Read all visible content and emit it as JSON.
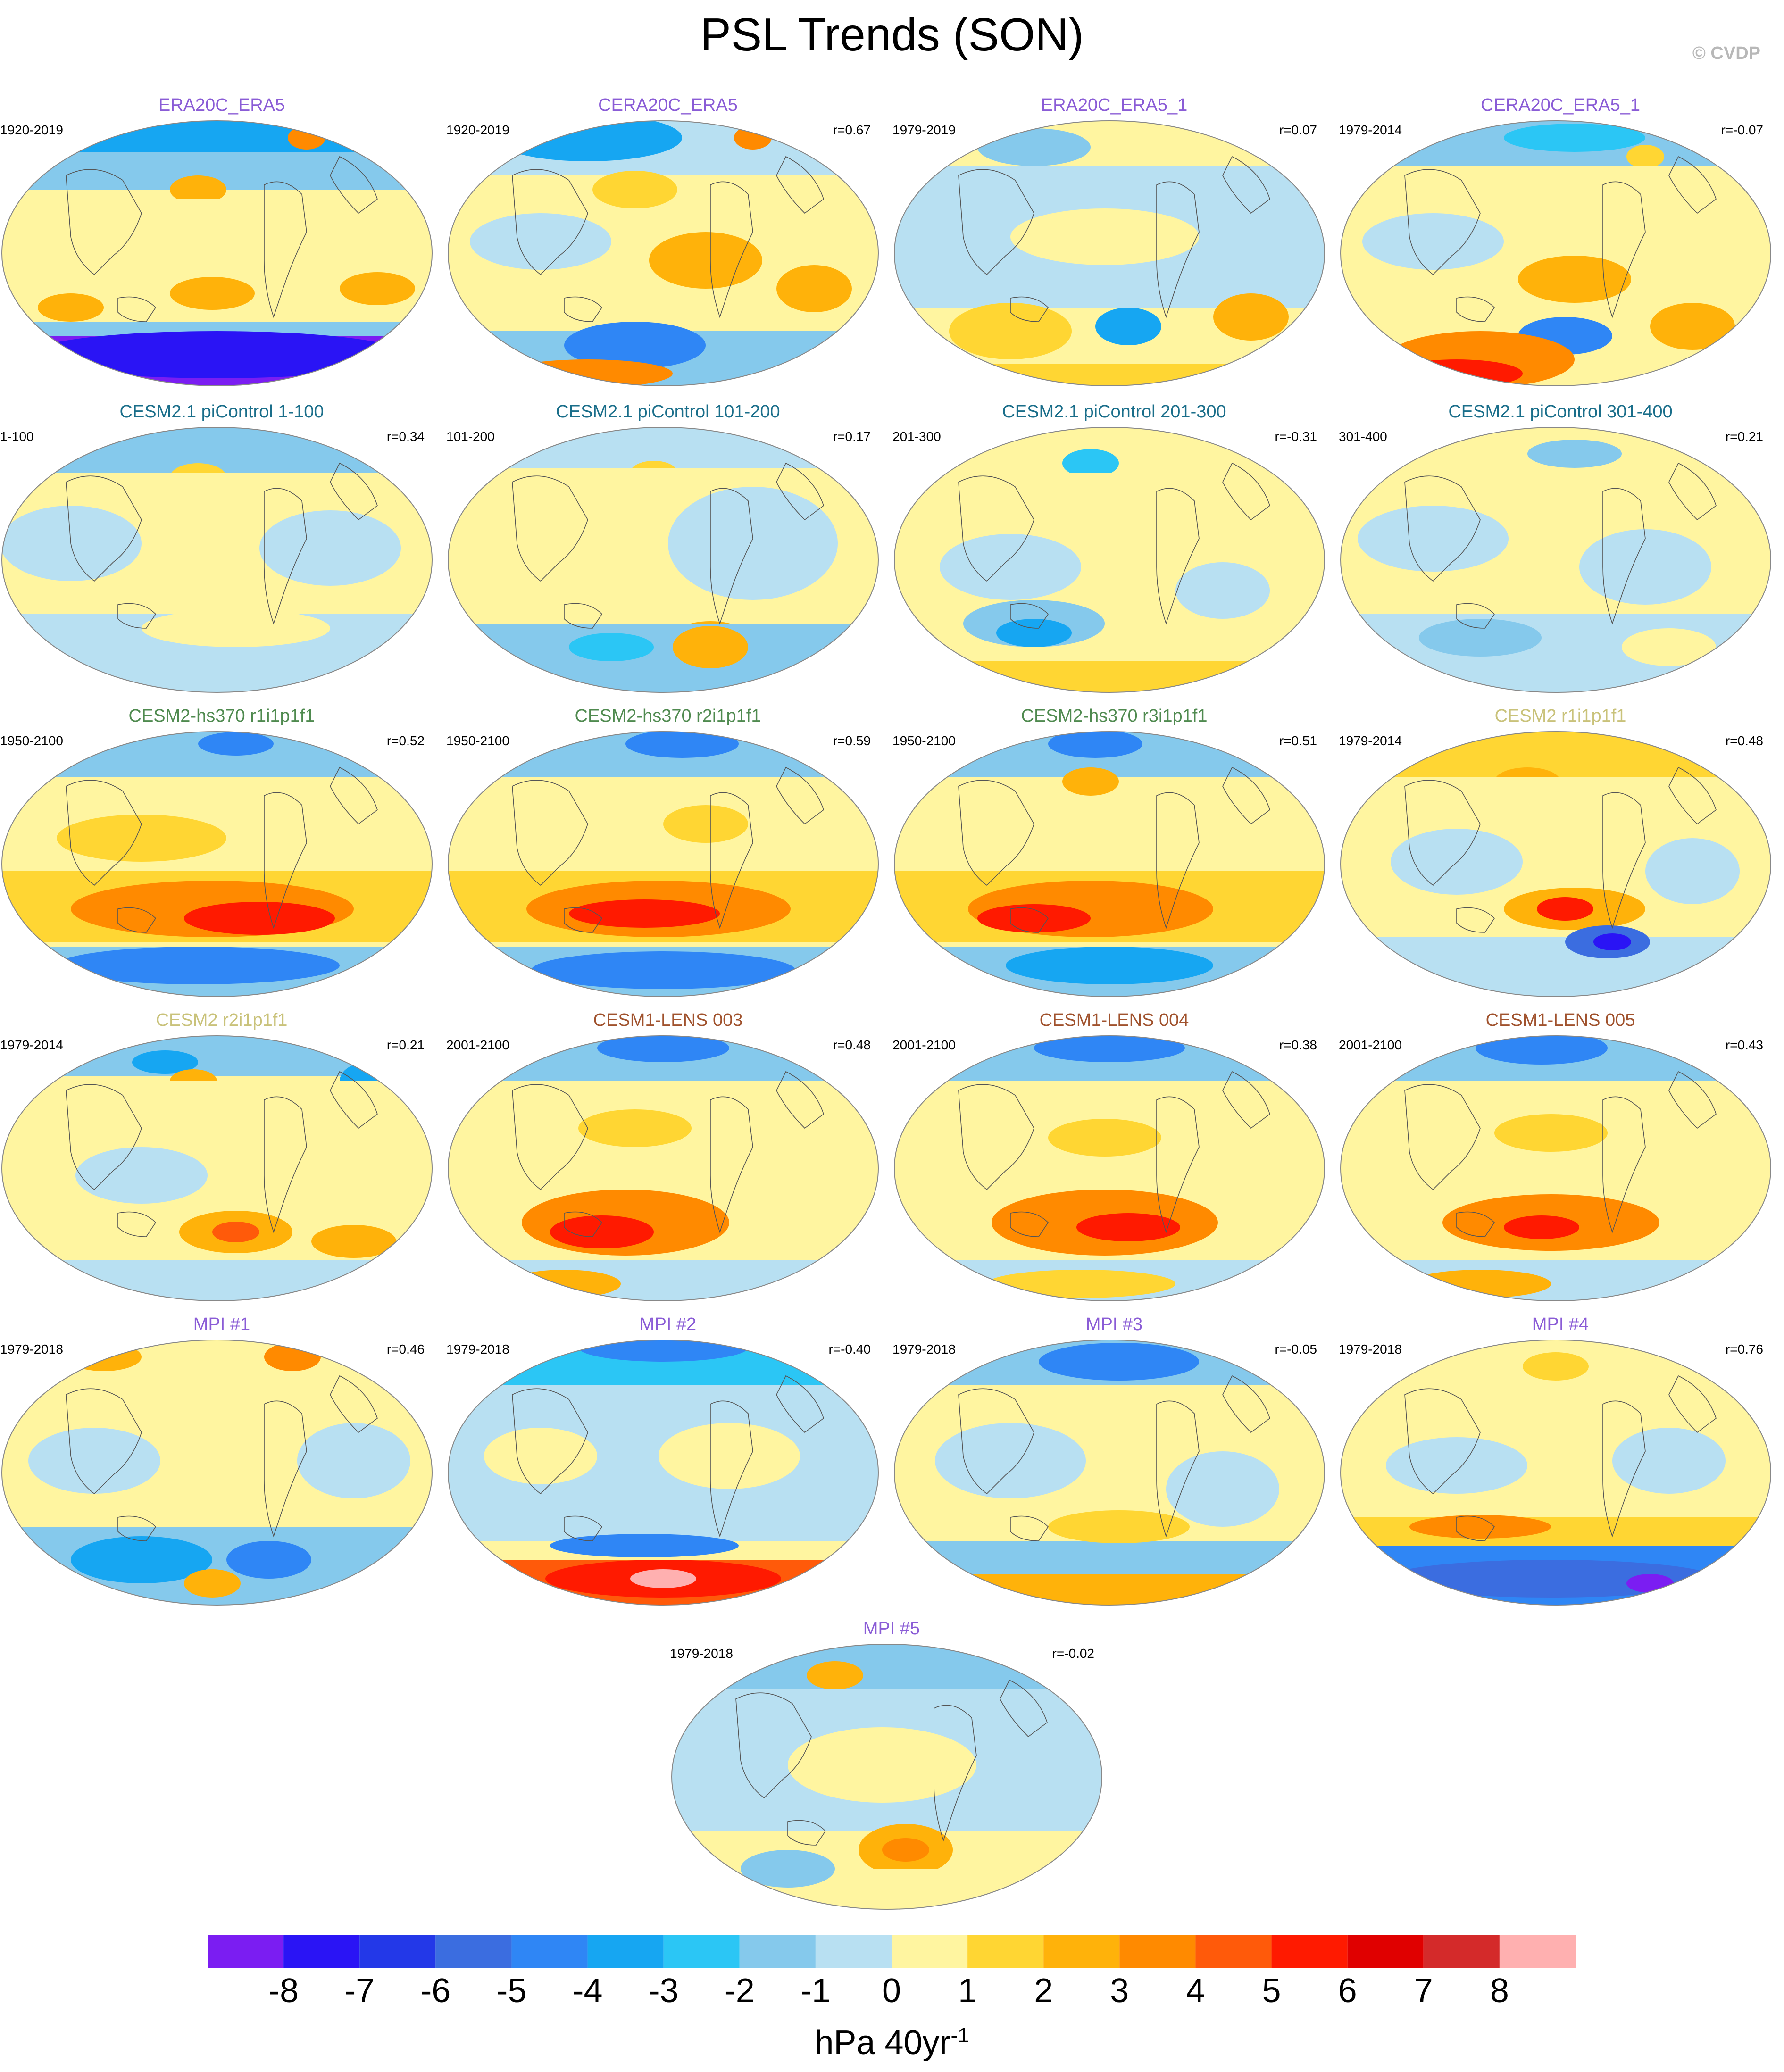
{
  "title": "PSL Trends (SON)",
  "copyright": "© CVDP",
  "panels": [
    {
      "title": "ERA20C_ERA5",
      "period": "1920-2019",
      "r": "",
      "title_color": "#8a5cd6",
      "pattern": "obs1"
    },
    {
      "title": "CERA20C_ERA5",
      "period": "1920-2019",
      "r": "r=0.67",
      "title_color": "#8a5cd6",
      "pattern": "obs2"
    },
    {
      "title": "ERA20C_ERA5_1",
      "period": "1979-2019",
      "r": "r=0.07",
      "title_color": "#8a5cd6",
      "pattern": "obs3"
    },
    {
      "title": "CERA20C_ERA5_1",
      "period": "1979-2014",
      "r": "r=-0.07",
      "title_color": "#8a5cd6",
      "pattern": "obs4"
    },
    {
      "title": "CESM2.1 piControl 1-100",
      "period": "1-100",
      "r": "r=0.34",
      "title_color": "#1a6e8a",
      "pattern": "pi1"
    },
    {
      "title": "CESM2.1 piControl 101-200",
      "period": "101-200",
      "r": "r=0.17",
      "title_color": "#1a6e8a",
      "pattern": "pi2"
    },
    {
      "title": "CESM2.1 piControl 201-300",
      "period": "201-300",
      "r": "r=-0.31",
      "title_color": "#1a6e8a",
      "pattern": "pi3"
    },
    {
      "title": "CESM2.1 piControl 301-400",
      "period": "301-400",
      "r": "r=0.21",
      "title_color": "#1a6e8a",
      "pattern": "pi4"
    },
    {
      "title": "CESM2-hs370 r1i1p1f1",
      "period": "1950-2100",
      "r": "r=0.52",
      "title_color": "#4f8a4f",
      "pattern": "hs"
    },
    {
      "title": "CESM2-hs370 r2i1p1f1",
      "period": "1950-2100",
      "r": "r=0.59",
      "title_color": "#4f8a4f",
      "pattern": "hs2"
    },
    {
      "title": "CESM2-hs370 r3i1p1f1",
      "period": "1950-2100",
      "r": "r=0.51",
      "title_color": "#4f8a4f",
      "pattern": "hs3"
    },
    {
      "title": "CESM2 r1i1p1f1",
      "period": "1979-2014",
      "r": "r=0.48",
      "title_color": "#c9c27a",
      "pattern": "c2a"
    },
    {
      "title": "CESM2 r2i1p1f1",
      "period": "1979-2014",
      "r": "r=0.21",
      "title_color": "#c9c27a",
      "pattern": "c2b"
    },
    {
      "title": "CESM1-LENS 003",
      "period": "2001-2100",
      "r": "r=0.48",
      "title_color": "#a0522d",
      "pattern": "lens"
    },
    {
      "title": "CESM1-LENS 004",
      "period": "2001-2100",
      "r": "r=0.38",
      "title_color": "#a0522d",
      "pattern": "lens2"
    },
    {
      "title": "CESM1-LENS 005",
      "period": "2001-2100",
      "r": "r=0.43",
      "title_color": "#a0522d",
      "pattern": "lens3"
    },
    {
      "title": "MPI #1",
      "period": "1979-2018",
      "r": "r=0.46",
      "title_color": "#8a5cd6",
      "pattern": "mpi1"
    },
    {
      "title": "MPI #2",
      "period": "1979-2018",
      "r": "r=-0.40",
      "title_color": "#8a5cd6",
      "pattern": "mpi2"
    },
    {
      "title": "MPI #3",
      "period": "1979-2018",
      "r": "r=-0.05",
      "title_color": "#8a5cd6",
      "pattern": "mpi3"
    },
    {
      "title": "MPI #4",
      "period": "1979-2018",
      "r": "r=0.76",
      "title_color": "#8a5cd6",
      "pattern": "mpi4"
    },
    {
      "title": "MPI #5",
      "period": "1979-2018",
      "r": "r=-0.02",
      "title_color": "#8a5cd6",
      "pattern": "mpi5"
    }
  ],
  "colorbar": {
    "colors": [
      "#7b1df2",
      "#2a14f5",
      "#2338e8",
      "#3b6de0",
      "#2f86f5",
      "#16a6f2",
      "#2bc6f5",
      "#85c9ec",
      "#b8e0f2",
      "#fff5a0",
      "#ffd633",
      "#ffb20a",
      "#ff8a00",
      "#ff5a0a",
      "#ff1a00",
      "#e00000",
      "#d42a2a",
      "#ffb0b0"
    ],
    "tick_labels": [
      "-8",
      "-7",
      "-6",
      "-5",
      "-4",
      "-3",
      "-2",
      "-1",
      "0",
      "1",
      "2",
      "3",
      "4",
      "5",
      "6",
      "7",
      "8"
    ]
  },
  "units_base": "hPa 40yr",
  "units_exp": "-1"
}
